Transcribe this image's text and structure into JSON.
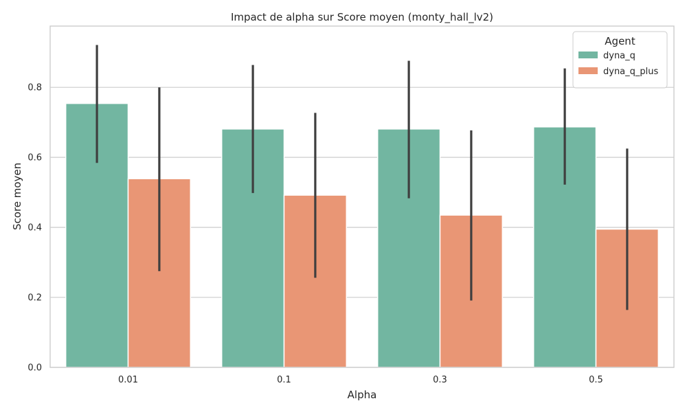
{
  "chart_data": {
    "type": "bar",
    "title": "Impact de alpha sur Score moyen (monty_hall_lv2)",
    "xlabel": "Alpha",
    "ylabel": "Score moyen",
    "categories": [
      "0.01",
      "0.1",
      "0.3",
      "0.5"
    ],
    "ylim": [
      0,
      0.975
    ],
    "yticks": [
      0.0,
      0.2,
      0.4,
      0.6,
      0.8
    ],
    "ytick_labels": [
      "0.0",
      "0.2",
      "0.4",
      "0.6",
      "0.8"
    ],
    "grid": true,
    "legend": {
      "title": "Agent",
      "placement": "top-right"
    },
    "series": [
      {
        "name": "dyna_q",
        "color": "#72b6a1",
        "values": [
          0.754,
          0.681,
          0.681,
          0.687
        ],
        "err_low": [
          0.584,
          0.498,
          0.483,
          0.522
        ],
        "err_high": [
          0.921,
          0.864,
          0.876,
          0.854
        ]
      },
      {
        "name": "dyna_q_plus",
        "color": "#e99675",
        "values": [
          0.539,
          0.492,
          0.435,
          0.395
        ],
        "err_low": [
          0.275,
          0.256,
          0.191,
          0.164
        ],
        "err_high": [
          0.8,
          0.727,
          0.677,
          0.625
        ]
      }
    ],
    "errorbar_color": "#3f3f3f"
  }
}
